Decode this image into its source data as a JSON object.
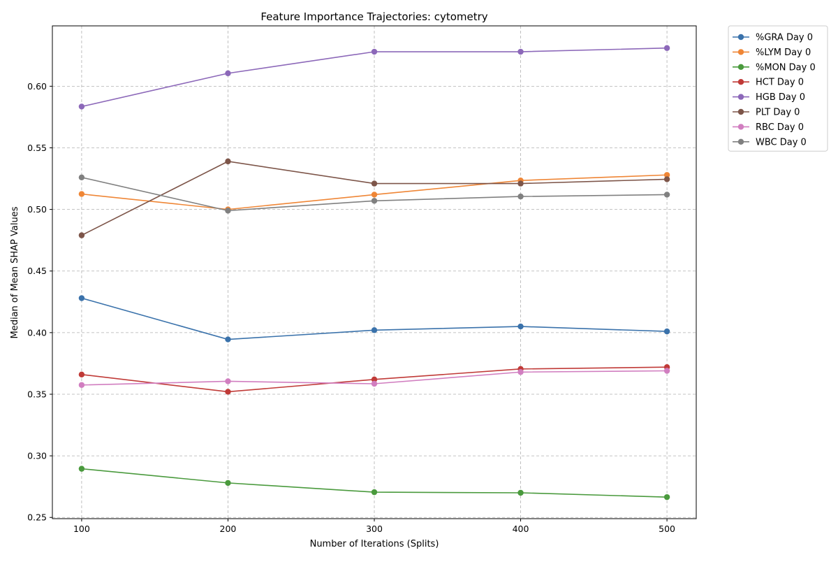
{
  "chart_data": {
    "type": "line",
    "title": "Feature Importance Trajectories: cytometry",
    "xlabel": "Number of Iterations (Splits)",
    "ylabel": "Median of Mean SHAP Values",
    "x": [
      100,
      200,
      300,
      400,
      500
    ],
    "xlim": [
      80,
      520
    ],
    "ylim": [
      0.249,
      0.649
    ],
    "xticks": [
      "100",
      "200",
      "300",
      "400",
      "500"
    ],
    "yticks": [
      "0.25",
      "0.30",
      "0.35",
      "0.40",
      "0.45",
      "0.50",
      "0.55",
      "0.60"
    ],
    "ytick_values": [
      0.25,
      0.3,
      0.35,
      0.4,
      0.45,
      0.5,
      0.55,
      0.6
    ],
    "grid": true,
    "legend_position": "outside-top-right",
    "series": [
      {
        "name": "%GRA Day 0",
        "color": "#3a72ab",
        "values": [
          0.428,
          0.3945,
          0.402,
          0.405,
          0.401
        ]
      },
      {
        "name": "%LYM Day 0",
        "color": "#ef8636",
        "values": [
          0.5125,
          0.5,
          0.512,
          0.5235,
          0.528
        ]
      },
      {
        "name": "%MON Day 0",
        "color": "#4a9a3d",
        "values": [
          0.2895,
          0.278,
          0.2705,
          0.27,
          0.2665
        ]
      },
      {
        "name": "HCT Day 0",
        "color": "#c03a37",
        "values": [
          0.366,
          0.352,
          0.362,
          0.3705,
          0.372
        ]
      },
      {
        "name": "HGB Day 0",
        "color": "#8c68b9",
        "values": [
          0.5835,
          0.6105,
          0.628,
          0.628,
          0.631
        ]
      },
      {
        "name": "PLT Day 0",
        "color": "#7d5549",
        "values": [
          0.479,
          0.539,
          0.521,
          0.521,
          0.5245
        ]
      },
      {
        "name": "RBC Day 0",
        "color": "#d17ec0",
        "values": [
          0.3575,
          0.3605,
          0.3585,
          0.368,
          0.369
        ]
      },
      {
        "name": "WBC Day 0",
        "color": "#808080",
        "values": [
          0.526,
          0.499,
          0.507,
          0.5105,
          0.512
        ]
      }
    ]
  }
}
